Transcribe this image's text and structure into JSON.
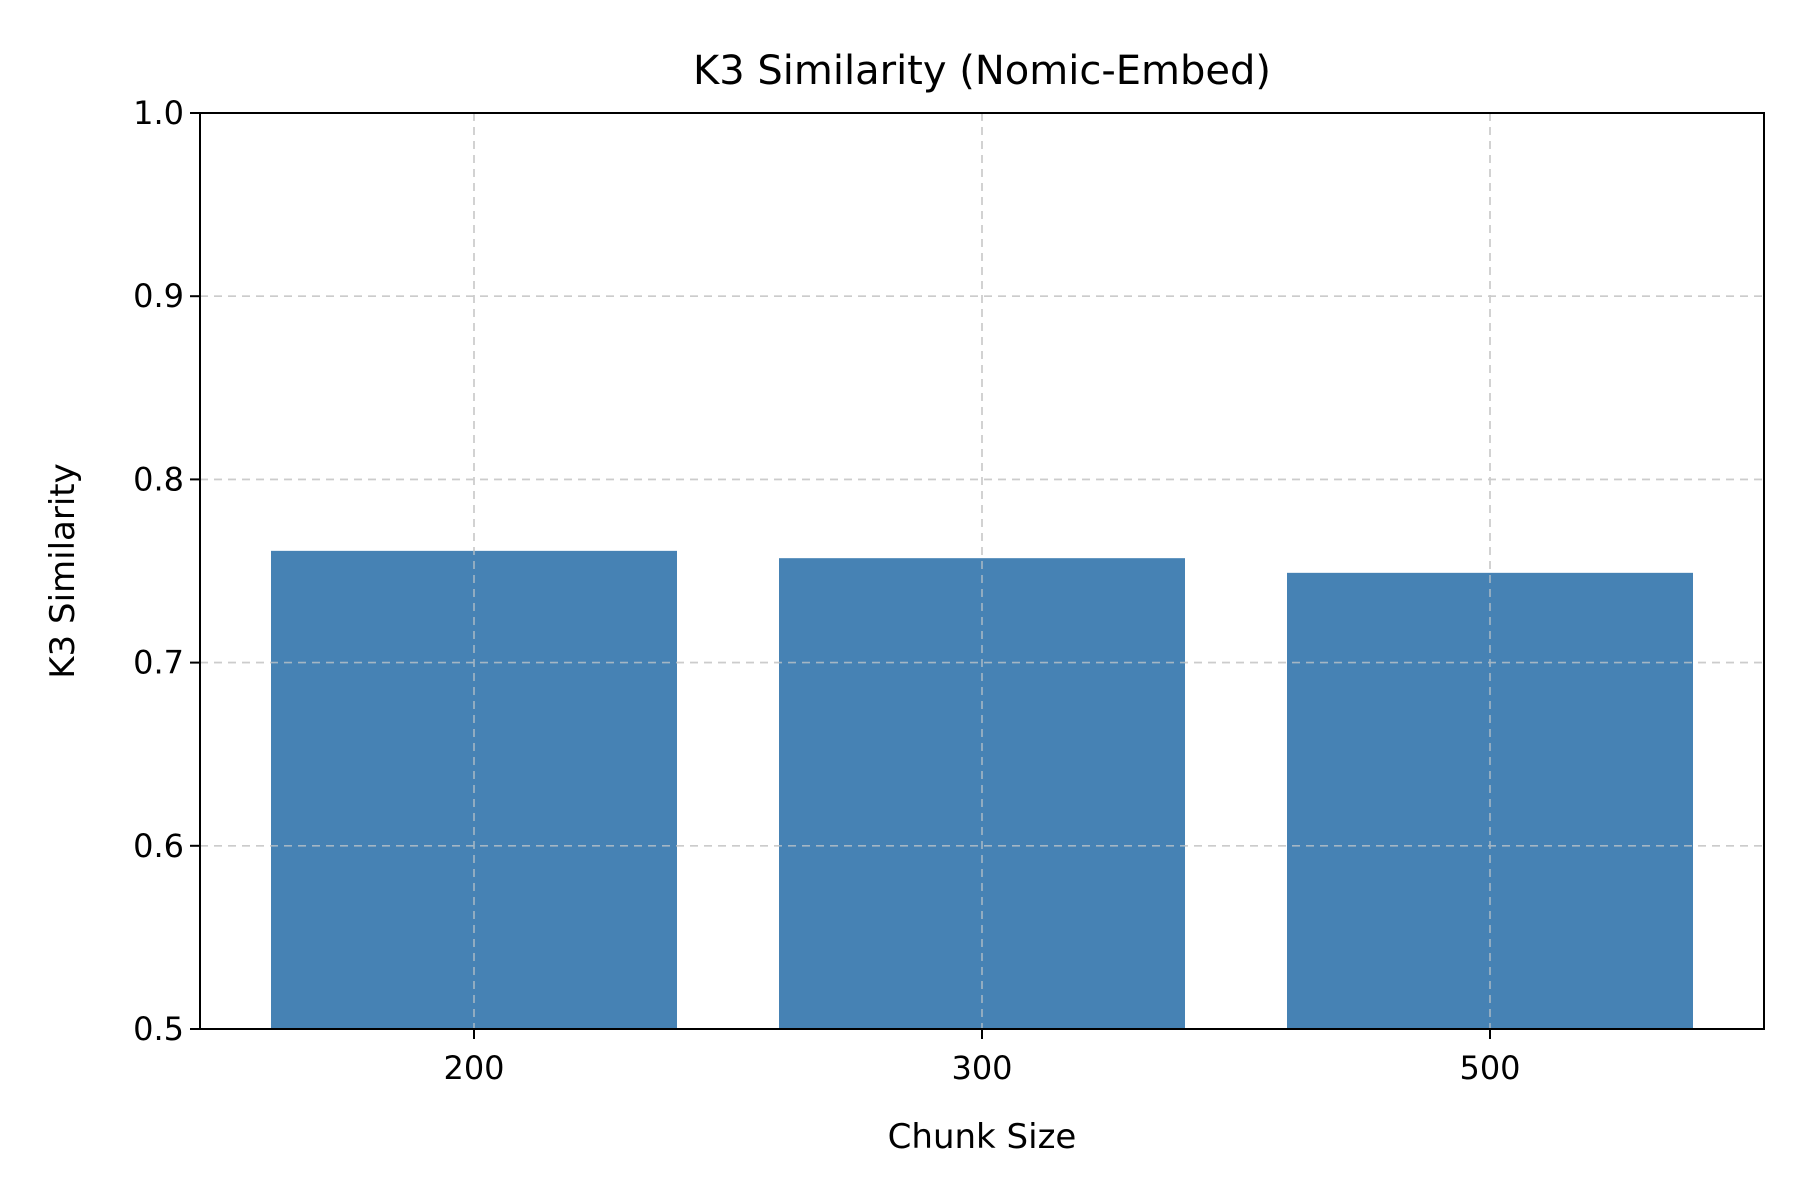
{
  "chart_data": {
    "type": "bar",
    "title": "K3 Similarity (Nomic-Embed)",
    "xlabel": "Chunk Size",
    "ylabel": "K3 Similarity",
    "categories": [
      "200",
      "300",
      "500"
    ],
    "values": [
      0.761,
      0.757,
      0.749
    ],
    "ylim": [
      0.5,
      1.0
    ],
    "yticks": [
      "0.5",
      "0.6",
      "0.7",
      "0.8",
      "0.9",
      "1.0"
    ],
    "grid": true,
    "bar_color": "#4682b4"
  }
}
